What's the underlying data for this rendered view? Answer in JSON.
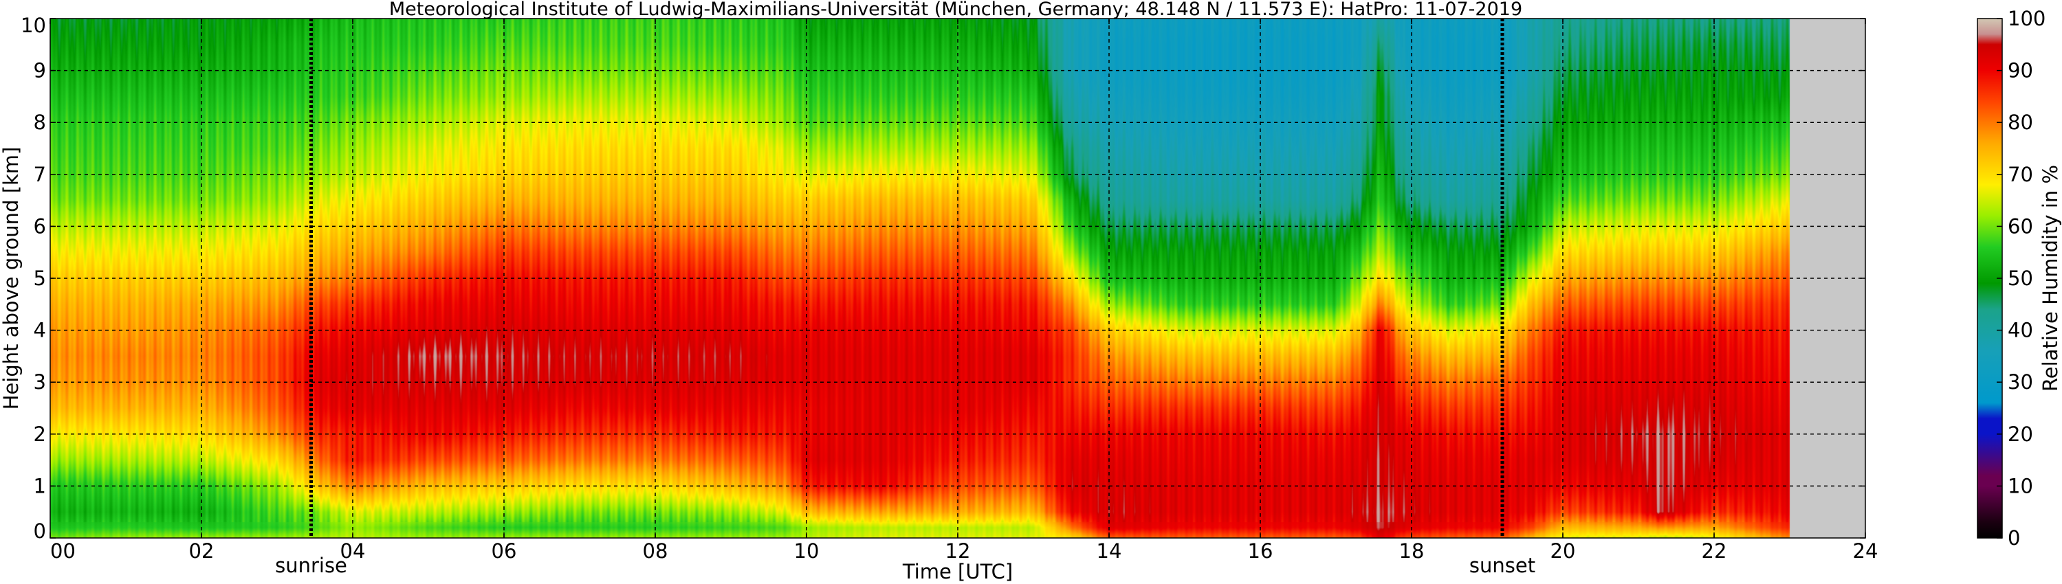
{
  "chart_data": {
    "type": "heatmap",
    "title": "Meteorological Institute of Ludwig-Maximilians-Universität (München, Germany; 48.148 N / 11.573 E):    HatPro: 11-07-2019",
    "xlabel": "Time [UTC]",
    "ylabel": "Height above ground [km]",
    "xlim": [
      0,
      24
    ],
    "ylim": [
      0,
      10
    ],
    "x_ticks": [
      "00",
      "02",
      "04",
      "06",
      "08",
      "10",
      "12",
      "14",
      "16",
      "18",
      "20",
      "22",
      "24"
    ],
    "y_ticks": [
      "0",
      "1",
      "2",
      "3",
      "4",
      "5",
      "6",
      "7",
      "8",
      "9",
      "10"
    ],
    "grid": true,
    "value_label": "Relative Humidity in %",
    "colorbar_ticks": [
      "0",
      "10",
      "20",
      "30",
      "40",
      "50",
      "60",
      "70",
      "80",
      "90",
      "100"
    ],
    "colorbar_range": [
      0,
      100
    ],
    "colormap": [
      {
        "v": 0,
        "c": "#000000"
      },
      {
        "v": 3,
        "c": "#1a0010"
      },
      {
        "v": 10,
        "c": "#6a0050"
      },
      {
        "v": 12,
        "c": "#6a0050"
      },
      {
        "v": 20,
        "c": "#0a14c8"
      },
      {
        "v": 23,
        "c": "#0a14c8"
      },
      {
        "v": 26,
        "c": "#0099cc"
      },
      {
        "v": 36,
        "c": "#17a0b8"
      },
      {
        "v": 44,
        "c": "#1ba38a"
      },
      {
        "v": 49,
        "c": "#009900"
      },
      {
        "v": 56,
        "c": "#22cc22"
      },
      {
        "v": 62,
        "c": "#99ee00"
      },
      {
        "v": 68,
        "c": "#ffee00"
      },
      {
        "v": 76,
        "c": "#ffaa00"
      },
      {
        "v": 84,
        "c": "#ff4400"
      },
      {
        "v": 90,
        "c": "#ee0000"
      },
      {
        "v": 95,
        "c": "#cc0000"
      },
      {
        "v": 97,
        "c": "#c89090"
      },
      {
        "v": 100,
        "c": "#d2c8b4"
      }
    ],
    "no_data_color": "#c8c8c8",
    "no_data_from_hour": 23,
    "markers": [
      {
        "label": "sunrise",
        "hour": 3.45
      },
      {
        "label": "sunset",
        "hour": 19.2
      }
    ],
    "heights_km": [
      0,
      0.2,
      0.5,
      1,
      1.5,
      2,
      2.5,
      3,
      3.5,
      4,
      4.5,
      5,
      5.5,
      6,
      6.5,
      7,
      7.5,
      8,
      8.5,
      9,
      9.5,
      10
    ],
    "profiles": [
      {
        "hour": 0.0,
        "rh": [
          60,
          55,
          52,
          55,
          62,
          68,
          74,
          77,
          78,
          77,
          75,
          72,
          68,
          64,
          60,
          58,
          57,
          56,
          54,
          52,
          50,
          48
        ]
      },
      {
        "hour": 1.0,
        "rh": [
          62,
          56,
          53,
          56,
          63,
          69,
          75,
          78,
          79,
          77,
          75,
          72,
          68,
          64,
          60,
          58,
          57,
          56,
          54,
          52,
          50,
          48
        ]
      },
      {
        "hour": 2.0,
        "rh": [
          62,
          55,
          52,
          56,
          64,
          70,
          75,
          78,
          79,
          78,
          76,
          72,
          68,
          64,
          60,
          58,
          57,
          56,
          54,
          52,
          50,
          49
        ]
      },
      {
        "hour": 3.0,
        "rh": [
          62,
          56,
          58,
          62,
          70,
          78,
          82,
          84,
          84,
          82,
          78,
          74,
          70,
          66,
          62,
          60,
          58,
          57,
          55,
          53,
          52,
          50
        ]
      },
      {
        "hour": 3.5,
        "rh": [
          63,
          58,
          60,
          72,
          80,
          86,
          90,
          92,
          91,
          88,
          84,
          78,
          74,
          70,
          66,
          62,
          60,
          58,
          56,
          55,
          54,
          52
        ]
      },
      {
        "hour": 4.0,
        "rh": [
          64,
          62,
          66,
          80,
          88,
          88,
          92,
          93,
          92,
          90,
          86,
          80,
          76,
          72,
          68,
          64,
          62,
          60,
          57,
          56,
          55,
          54
        ]
      },
      {
        "hour": 5.0,
        "rh": [
          62,
          58,
          64,
          74,
          84,
          90,
          92,
          94,
          96,
          92,
          90,
          86,
          80,
          76,
          72,
          68,
          66,
          63,
          60,
          58,
          56,
          55
        ]
      },
      {
        "hour": 6.0,
        "rh": [
          62,
          56,
          62,
          72,
          82,
          88,
          92,
          94,
          95,
          93,
          91,
          89,
          85,
          80,
          75,
          71,
          69,
          66,
          62,
          60,
          58,
          56
        ]
      },
      {
        "hour": 7.0,
        "rh": [
          62,
          56,
          60,
          70,
          80,
          86,
          90,
          93,
          94,
          92,
          90,
          88,
          84,
          79,
          75,
          72,
          70,
          67,
          63,
          60,
          58,
          57
        ]
      },
      {
        "hour": 8.0,
        "rh": [
          62,
          56,
          60,
          70,
          80,
          86,
          91,
          93,
          94,
          92,
          90,
          88,
          84,
          79,
          75,
          72,
          70,
          67,
          63,
          60,
          58,
          57
        ]
      },
      {
        "hour": 9.0,
        "rh": [
          62,
          57,
          62,
          74,
          82,
          88,
          91,
          93,
          94,
          92,
          90,
          88,
          84,
          79,
          75,
          72,
          70,
          66,
          62,
          59,
          57,
          56
        ]
      },
      {
        "hour": 9.7,
        "rh": [
          62,
          58,
          66,
          78,
          84,
          88,
          90,
          92,
          92,
          90,
          88,
          84,
          80,
          76,
          72,
          68,
          66,
          62,
          60,
          58,
          56,
          55
        ]
      },
      {
        "hour": 10.0,
        "rh": [
          64,
          62,
          74,
          88,
          92,
          91,
          91,
          92,
          92,
          91,
          88,
          84,
          80,
          76,
          72,
          66,
          62,
          58,
          56,
          54,
          52,
          50
        ]
      },
      {
        "hour": 11.0,
        "rh": [
          66,
          64,
          76,
          90,
          92,
          92,
          92,
          92,
          92,
          91,
          89,
          86,
          82,
          78,
          74,
          68,
          63,
          59,
          56,
          54,
          52,
          50
        ]
      },
      {
        "hour": 12.0,
        "rh": [
          66,
          64,
          76,
          84,
          88,
          90,
          92,
          92,
          92,
          91,
          89,
          86,
          82,
          78,
          74,
          68,
          63,
          59,
          56,
          54,
          52,
          50
        ]
      },
      {
        "hour": 13.0,
        "rh": [
          66,
          64,
          74,
          82,
          86,
          88,
          90,
          92,
          92,
          90,
          88,
          84,
          80,
          76,
          72,
          66,
          62,
          58,
          55,
          52,
          50,
          48
        ]
      },
      {
        "hour": 13.5,
        "rh": [
          70,
          80,
          90,
          93,
          92,
          90,
          88,
          86,
          86,
          84,
          78,
          70,
          62,
          56,
          52,
          46,
          44,
          40,
          38,
          36,
          36,
          36
        ]
      },
      {
        "hour": 14.0,
        "rh": [
          82,
          92,
          94,
          93,
          92,
          90,
          86,
          82,
          78,
          72,
          62,
          54,
          50,
          46,
          42,
          40,
          38,
          36,
          34,
          32,
          32,
          33
        ]
      },
      {
        "hour": 15.0,
        "rh": [
          82,
          90,
          92,
          92,
          91,
          90,
          86,
          80,
          74,
          66,
          56,
          52,
          50,
          46,
          40,
          38,
          36,
          34,
          32,
          31,
          31,
          32
        ]
      },
      {
        "hour": 16.0,
        "rh": [
          82,
          90,
          92,
          92,
          91,
          90,
          86,
          80,
          74,
          66,
          56,
          52,
          50,
          46,
          40,
          38,
          36,
          34,
          32,
          31,
          31,
          32
        ]
      },
      {
        "hour": 17.0,
        "rh": [
          82,
          90,
          92,
          92,
          91,
          89,
          85,
          80,
          74,
          66,
          56,
          52,
          50,
          46,
          40,
          38,
          36,
          34,
          32,
          31,
          31,
          32
        ]
      },
      {
        "hour": 17.3,
        "rh": [
          84,
          92,
          94,
          93,
          92,
          91,
          88,
          84,
          80,
          74,
          66,
          60,
          55,
          50,
          45,
          42,
          40,
          38,
          36,
          34,
          33,
          33
        ]
      },
      {
        "hour": 17.6,
        "rh": [
          92,
          96,
          96,
          95,
          95,
          94,
          94,
          93,
          92,
          91,
          80,
          70,
          64,
          60,
          56,
          54,
          52,
          50,
          50,
          48,
          45,
          40
        ]
      },
      {
        "hour": 17.9,
        "rh": [
          84,
          92,
          94,
          93,
          92,
          91,
          88,
          84,
          80,
          74,
          66,
          60,
          55,
          50,
          45,
          42,
          40,
          38,
          36,
          34,
          33,
          33
        ]
      },
      {
        "hour": 18.5,
        "rh": [
          82,
          90,
          92,
          92,
          91,
          89,
          85,
          80,
          74,
          66,
          56,
          52,
          50,
          46,
          40,
          38,
          36,
          34,
          32,
          31,
          31,
          32
        ]
      },
      {
        "hour": 19.2,
        "rh": [
          82,
          90,
          92,
          92,
          91,
          89,
          86,
          82,
          76,
          70,
          60,
          54,
          50,
          46,
          42,
          40,
          38,
          36,
          34,
          32,
          32,
          33
        ]
      },
      {
        "hour": 19.6,
        "rh": [
          74,
          84,
          90,
          92,
          92,
          90,
          88,
          86,
          84,
          80,
          74,
          66,
          58,
          52,
          50,
          47,
          45,
          42,
          40,
          38,
          38,
          38
        ]
      },
      {
        "hour": 20.0,
        "rh": [
          66,
          74,
          84,
          90,
          92,
          92,
          92,
          91,
          90,
          88,
          82,
          76,
          70,
          64,
          58,
          54,
          52,
          50,
          48,
          46,
          44,
          42
        ]
      },
      {
        "hour": 21.0,
        "rh": [
          66,
          76,
          88,
          92,
          94,
          95,
          93,
          92,
          91,
          89,
          84,
          78,
          72,
          66,
          60,
          56,
          54,
          52,
          50,
          48,
          46,
          44
        ]
      },
      {
        "hour": 21.3,
        "rh": [
          64,
          78,
          96,
          96,
          96,
          96,
          94,
          92,
          91,
          89,
          84,
          78,
          72,
          66,
          60,
          56,
          54,
          52,
          50,
          48,
          46,
          44
        ]
      },
      {
        "hour": 22.0,
        "rh": [
          66,
          76,
          86,
          91,
          93,
          94,
          93,
          92,
          91,
          89,
          84,
          78,
          72,
          66,
          60,
          56,
          54,
          52,
          50,
          49,
          47,
          44
        ]
      },
      {
        "hour": 22.9,
        "rh": [
          78,
          86,
          90,
          92,
          92,
          92,
          91,
          90,
          89,
          88,
          86,
          82,
          78,
          72,
          66,
          60,
          57,
          54,
          50,
          48,
          46,
          44
        ]
      }
    ]
  }
}
